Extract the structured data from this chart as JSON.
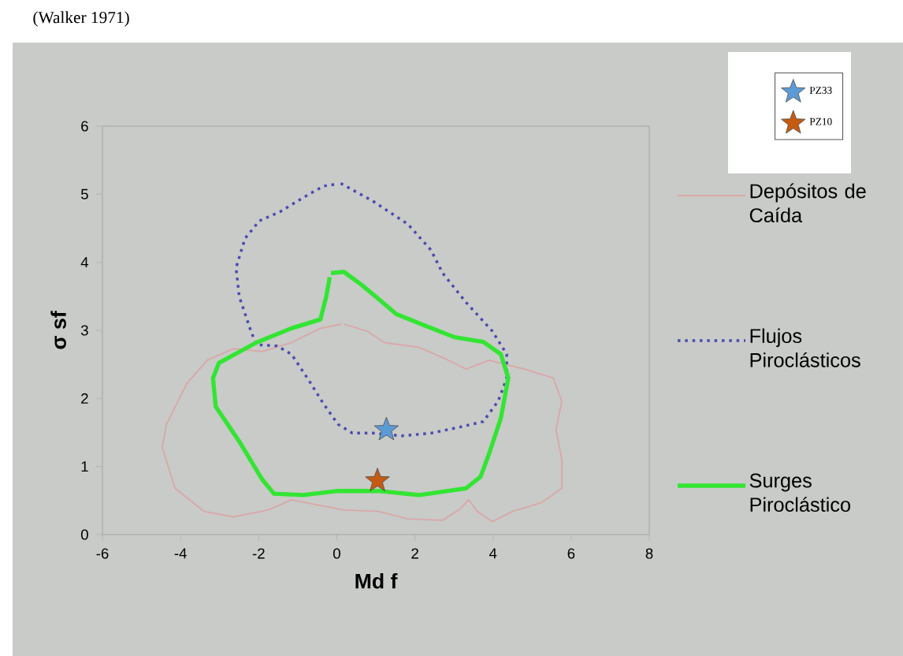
{
  "chart_data": {
    "type": "line",
    "annotations": [
      "(Walker 1971)"
    ],
    "xlabel": "Md f",
    "ylabel": "σ sf",
    "xlim": [
      -6,
      8
    ],
    "ylim": [
      0,
      6
    ],
    "xticks": [
      -6,
      -4,
      -2,
      0,
      2,
      4,
      6,
      8
    ],
    "yticks": [
      0,
      1,
      2,
      3,
      4,
      5,
      6
    ],
    "legend": "right",
    "series": [
      {
        "name": "Depósitos de Caída",
        "color": "#d9a8a8",
        "line_style": "solid",
        "marker": "none",
        "x": [
          0.18,
          0.77,
          1.22,
          2.11,
          2.86,
          3.31,
          3.9,
          4.8,
          5.54,
          5.76,
          5.61,
          5.76,
          5.76,
          5.24,
          4.5,
          3.98,
          3.6,
          3.38,
          3.16,
          2.71,
          1.82,
          1.07,
          0.18,
          -1.16,
          -1.76,
          -2.65,
          -3.4,
          -4.14,
          -4.47,
          -4.36,
          -3.84,
          -3.32,
          -2.65,
          -1.91,
          -1.16,
          -0.42,
          0.11
        ],
        "values": [
          3.09,
          2.99,
          2.82,
          2.75,
          2.56,
          2.43,
          2.56,
          2.43,
          2.3,
          1.96,
          1.54,
          1.11,
          0.68,
          0.47,
          0.34,
          0.19,
          0.34,
          0.51,
          0.38,
          0.21,
          0.23,
          0.34,
          0.36,
          0.51,
          0.36,
          0.26,
          0.34,
          0.68,
          1.28,
          1.62,
          2.22,
          2.56,
          2.73,
          2.69,
          2.82,
          3.03,
          3.09
        ]
      },
      {
        "name": "Flujos Piroclásticos",
        "color": "#4a4ab0",
        "line_style": "dotted",
        "marker": "none",
        "x": [
          0.1,
          0.92,
          1.82,
          2.41,
          2.71,
          3.31,
          3.98,
          4.35,
          4.35,
          4.13,
          3.75,
          3.16,
          2.41,
          1.67,
          0.92,
          0.4,
          0.03,
          -0.34,
          -0.71,
          -1.16,
          -1.53,
          -2.06,
          -2.2,
          -2.5,
          -2.58,
          -2.35,
          -1.98,
          -1.46,
          -0.86,
          -0.34,
          0.03
        ],
        "values": [
          5.16,
          4.9,
          4.56,
          4.18,
          3.84,
          3.41,
          2.99,
          2.65,
          2.3,
          1.96,
          1.66,
          1.58,
          1.49,
          1.45,
          1.49,
          1.49,
          1.62,
          1.92,
          2.26,
          2.65,
          2.77,
          2.79,
          2.99,
          3.5,
          3.92,
          4.35,
          4.61,
          4.74,
          4.95,
          5.12,
          5.15
        ]
      },
      {
        "name": "Surges Piroclástico",
        "color": "#33e533",
        "line_style": "solid",
        "marker": "none",
        "x": [
          -0.15,
          0.18,
          0.63,
          1.07,
          1.52,
          2.26,
          3.01,
          3.75,
          4.2,
          4.39,
          4.2,
          3.9,
          3.68,
          3.31,
          2.11,
          1.07,
          0.03,
          -0.86,
          -1.61,
          -1.91,
          -2.5,
          -3.1,
          -3.17,
          -3.02,
          -2.06,
          -1.16,
          -0.42,
          -0.27,
          -0.18
        ],
        "values": [
          3.84,
          3.86,
          3.67,
          3.46,
          3.24,
          3.07,
          2.9,
          2.83,
          2.65,
          2.3,
          1.71,
          1.19,
          0.85,
          0.68,
          0.58,
          0.64,
          0.64,
          0.58,
          0.6,
          0.81,
          1.37,
          1.88,
          2.3,
          2.52,
          2.82,
          3.03,
          3.16,
          3.5,
          3.78
        ]
      },
      {
        "name": "PZ33",
        "type": "scatter",
        "color": "#5b9bd5",
        "marker": "star",
        "x": [
          1.27
        ],
        "values": [
          1.54
        ]
      },
      {
        "name": "PZ10",
        "type": "scatter",
        "color": "#c55a11",
        "marker": "star",
        "x": [
          1.04
        ],
        "values": [
          0.79
        ]
      }
    ]
  }
}
